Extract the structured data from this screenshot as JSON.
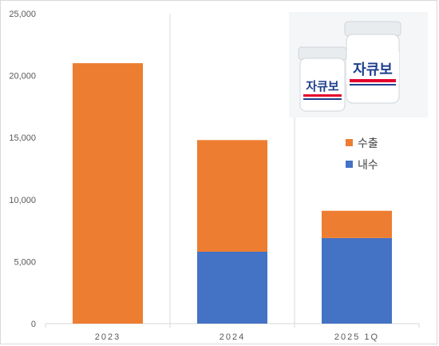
{
  "chart_data": {
    "type": "bar",
    "stacked": true,
    "categories": [
      "2023",
      "2024",
      "2025 1Q"
    ],
    "series": [
      {
        "name": "내수",
        "color": "#4472c4",
        "values": [
          0,
          5800,
          6900
        ]
      },
      {
        "name": "수출",
        "color": "#ed7d31",
        "values": [
          21000,
          9000,
          2200
        ]
      }
    ],
    "ylim": [
      0,
      25000
    ],
    "yticks": [
      0,
      5000,
      10000,
      15000,
      20000,
      25000
    ],
    "ytick_labels": [
      "0",
      "5,000",
      "10,000",
      "15,000",
      "20,000",
      "25,000"
    ],
    "grid": "vertical separators between categories",
    "legend_position": "right, below product photo",
    "legend_order": [
      "수출",
      "내수"
    ]
  },
  "product_image": {
    "brand_text": "자큐보",
    "icon": "medicine-bottles-photo"
  }
}
